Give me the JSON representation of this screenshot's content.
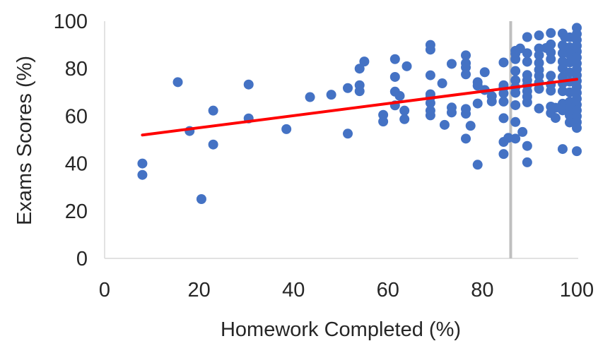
{
  "chart_data": {
    "type": "scatter",
    "title": "",
    "xlabel": "Homework Completed (%)",
    "ylabel": "Exams Scores (%)",
    "xlim": [
      0,
      100
    ],
    "ylim": [
      0,
      100
    ],
    "x_ticks": [
      "0",
      "20",
      "40",
      "60",
      "80",
      "100"
    ],
    "y_ticks": [
      "0",
      "20",
      "40",
      "60",
      "80",
      "100"
    ],
    "grid": false,
    "legend": "none",
    "colors": {
      "points": "#4472C4",
      "trendline": "#FF0000",
      "reference_line": "#BFBFBF",
      "axis": "#D9D9D9"
    },
    "trendline": {
      "x": [
        8,
        100
      ],
      "y": [
        52,
        75.5
      ]
    },
    "reference_line": {
      "x": 86
    },
    "points": [
      [
        8,
        40
      ],
      [
        8,
        35.2
      ],
      [
        15.5,
        74.3
      ],
      [
        18,
        53.7
      ],
      [
        20.5,
        25
      ],
      [
        23,
        62.3
      ],
      [
        23,
        48
      ],
      [
        30.5,
        73.3
      ],
      [
        30.5,
        59
      ],
      [
        38.5,
        54.5
      ],
      [
        43.5,
        68
      ],
      [
        48,
        69
      ],
      [
        51.5,
        71.8
      ],
      [
        51.5,
        52.6
      ],
      [
        54,
        80
      ],
      [
        54,
        73
      ],
      [
        54,
        70.5
      ],
      [
        55,
        83
      ],
      [
        59,
        57.7
      ],
      [
        59,
        60.5
      ],
      [
        61.5,
        84
      ],
      [
        61.5,
        76.5
      ],
      [
        61.5,
        70.3
      ],
      [
        61.5,
        64.5
      ],
      [
        62.5,
        68.5
      ],
      [
        63.5,
        62.3
      ],
      [
        63.5,
        58.7
      ],
      [
        64,
        81
      ],
      [
        69,
        90
      ],
      [
        69,
        88
      ],
      [
        69,
        77.2
      ],
      [
        69,
        69.2
      ],
      [
        69,
        68
      ],
      [
        69,
        65.5
      ],
      [
        69,
        62.3
      ],
      [
        69,
        60.3
      ],
      [
        71.5,
        73.8
      ],
      [
        72,
        56.3
      ],
      [
        73.5,
        82
      ],
      [
        73.5,
        63.6
      ],
      [
        73.5,
        61.5
      ],
      [
        76.5,
        85.6
      ],
      [
        76.5,
        82.3
      ],
      [
        76.5,
        80.5
      ],
      [
        76.5,
        77.6
      ],
      [
        76.5,
        63
      ],
      [
        76.5,
        61
      ],
      [
        76.5,
        50.5
      ],
      [
        77.5,
        55.9
      ],
      [
        79,
        74.3
      ],
      [
        79,
        72.8
      ],
      [
        79,
        65.3
      ],
      [
        79,
        39.5
      ],
      [
        80.5,
        78.5
      ],
      [
        80.5,
        71
      ],
      [
        82,
        68.4
      ],
      [
        82,
        66.2
      ],
      [
        84.5,
        82.6
      ],
      [
        84.5,
        73
      ],
      [
        84.5,
        72
      ],
      [
        84.5,
        69.6
      ],
      [
        84.5,
        66.1
      ],
      [
        84.5,
        59.1
      ],
      [
        84.5,
        49.1
      ],
      [
        84.5,
        44
      ],
      [
        85.5,
        50.8
      ],
      [
        87,
        87.5
      ],
      [
        87,
        86.3
      ],
      [
        87,
        84
      ],
      [
        87,
        79
      ],
      [
        87,
        75.1
      ],
      [
        87,
        72.1
      ],
      [
        87,
        69.8
      ],
      [
        87,
        64.6
      ],
      [
        87,
        57.5
      ],
      [
        87,
        50.5
      ],
      [
        88,
        88.5
      ],
      [
        88.5,
        53.3
      ],
      [
        89.5,
        93.3
      ],
      [
        89.5,
        86.5
      ],
      [
        89.5,
        82.9
      ],
      [
        89.5,
        77.3
      ],
      [
        89.5,
        75.1
      ],
      [
        89.5,
        73
      ],
      [
        89.5,
        70.5
      ],
      [
        89.5,
        68.2
      ],
      [
        89.5,
        65.8
      ],
      [
        89.5,
        47.4
      ],
      [
        89.5,
        40.5
      ],
      [
        92,
        94
      ],
      [
        92,
        88.5
      ],
      [
        92,
        85.7
      ],
      [
        92,
        82.4
      ],
      [
        92,
        79.5
      ],
      [
        92,
        77
      ],
      [
        92,
        74.1
      ],
      [
        92,
        71.5
      ],
      [
        92,
        63.2
      ],
      [
        93.5,
        88.7
      ],
      [
        94.5,
        95
      ],
      [
        94.5,
        90.2
      ],
      [
        94.5,
        86.8
      ],
      [
        94.5,
        84
      ],
      [
        94.5,
        77
      ],
      [
        94.5,
        73.3
      ],
      [
        94.5,
        70.7
      ],
      [
        94.5,
        64
      ],
      [
        94.5,
        61.3
      ],
      [
        95.5,
        59.2
      ],
      [
        95.5,
        63.5
      ],
      [
        97,
        94.8
      ],
      [
        97,
        89.8
      ],
      [
        97,
        86.5
      ],
      [
        97,
        83
      ],
      [
        97,
        80.2
      ],
      [
        97,
        76.4
      ],
      [
        97,
        73.8
      ],
      [
        97,
        70.5
      ],
      [
        97,
        65.2
      ],
      [
        97,
        62.4
      ],
      [
        97,
        46.1
      ],
      [
        97.5,
        93.3
      ],
      [
        98.5,
        93.2
      ],
      [
        98.5,
        89
      ],
      [
        98.5,
        86
      ],
      [
        98.5,
        82.6
      ],
      [
        98.5,
        78.4
      ],
      [
        98.5,
        74.5
      ],
      [
        98.5,
        70
      ],
      [
        98.5,
        66
      ],
      [
        98.5,
        63.4
      ],
      [
        98.5,
        60.3
      ],
      [
        98.5,
        57.3
      ],
      [
        100,
        97.2
      ],
      [
        100,
        94.6
      ],
      [
        100,
        92.1
      ],
      [
        100,
        89.6
      ],
      [
        100,
        87.2
      ],
      [
        100,
        84.7
      ],
      [
        100,
        82.2
      ],
      [
        100,
        79.7
      ],
      [
        100,
        77.2
      ],
      [
        100,
        74.8
      ],
      [
        100,
        72.3
      ],
      [
        100,
        69.8
      ],
      [
        100,
        67.3
      ],
      [
        100,
        64.8
      ],
      [
        100,
        62.4
      ],
      [
        100,
        59.9
      ],
      [
        100,
        57.4
      ],
      [
        100,
        55
      ],
      [
        100,
        45.2
      ]
    ]
  }
}
